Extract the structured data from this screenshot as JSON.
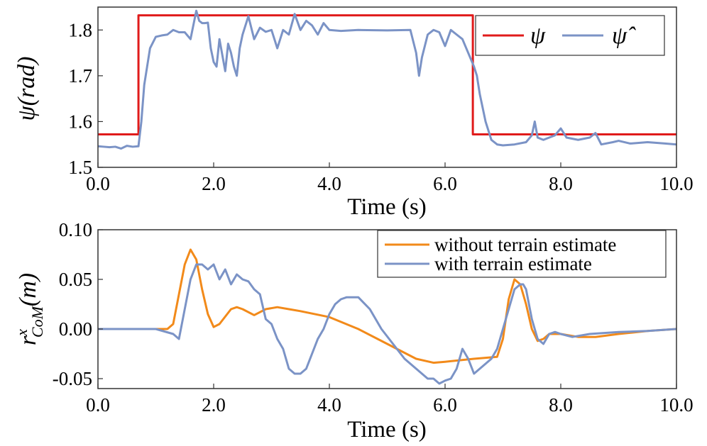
{
  "chart_data": [
    {
      "type": "line",
      "ylabel": "ψ(rad)",
      "xlabel": "Time (s)",
      "xlim": [
        0,
        10
      ],
      "ylim": [
        1.5,
        1.85
      ],
      "xticks": [
        0,
        2,
        4,
        6,
        8,
        10
      ],
      "xtick_labels": [
        "0.0",
        "2.0",
        "4.0",
        "6.0",
        "8.0",
        "10.0"
      ],
      "yticks": [
        1.5,
        1.6,
        1.7,
        1.8
      ],
      "ytick_labels": [
        "1.5",
        "1.6",
        "1.7",
        "1.8"
      ],
      "legend_position": "top-right",
      "series": [
        {
          "name": "ψ",
          "color": "#e01b1b",
          "x": [
            0.0,
            0.7,
            0.7,
            6.48,
            6.48,
            10.0
          ],
          "y": [
            1.572,
            1.572,
            1.832,
            1.832,
            1.572,
            1.572
          ]
        },
        {
          "name": "ψ̂",
          "color": "#7b93c6",
          "x": [
            0.0,
            0.1,
            0.2,
            0.3,
            0.4,
            0.5,
            0.6,
            0.7,
            0.75,
            0.8,
            0.85,
            0.9,
            1.0,
            1.1,
            1.2,
            1.3,
            1.4,
            1.5,
            1.6,
            1.7,
            1.75,
            1.8,
            1.85,
            1.9,
            1.95,
            2.0,
            2.05,
            2.1,
            2.2,
            2.25,
            2.3,
            2.35,
            2.4,
            2.45,
            2.5,
            2.6,
            2.7,
            2.8,
            2.9,
            3.0,
            3.1,
            3.2,
            3.3,
            3.4,
            3.5,
            3.6,
            3.7,
            3.8,
            3.9,
            4.0,
            4.2,
            4.5,
            5.0,
            5.4,
            5.5,
            5.55,
            5.6,
            5.7,
            5.8,
            5.9,
            6.0,
            6.1,
            6.2,
            6.3,
            6.4,
            6.5,
            6.55,
            6.6,
            6.7,
            6.8,
            6.9,
            7.0,
            7.2,
            7.4,
            7.5,
            7.55,
            7.6,
            7.7,
            7.8,
            7.9,
            8.0,
            8.1,
            8.3,
            8.5,
            8.6,
            8.7,
            8.9,
            9.0,
            9.2,
            9.5,
            9.8,
            10.0
          ],
          "y": [
            1.546,
            1.545,
            1.544,
            1.545,
            1.541,
            1.547,
            1.545,
            1.546,
            1.6,
            1.68,
            1.72,
            1.76,
            1.785,
            1.788,
            1.79,
            1.8,
            1.795,
            1.795,
            1.78,
            1.842,
            1.82,
            1.815,
            1.815,
            1.816,
            1.76,
            1.73,
            1.72,
            1.78,
            1.71,
            1.77,
            1.75,
            1.72,
            1.7,
            1.76,
            1.79,
            1.83,
            1.78,
            1.805,
            1.796,
            1.8,
            1.76,
            1.8,
            1.79,
            1.835,
            1.8,
            1.82,
            1.81,
            1.79,
            1.815,
            1.8,
            1.798,
            1.8,
            1.799,
            1.8,
            1.75,
            1.7,
            1.74,
            1.79,
            1.8,
            1.795,
            1.765,
            1.8,
            1.79,
            1.78,
            1.75,
            1.72,
            1.7,
            1.66,
            1.6,
            1.56,
            1.55,
            1.548,
            1.55,
            1.555,
            1.57,
            1.6,
            1.565,
            1.56,
            1.565,
            1.57,
            1.585,
            1.565,
            1.56,
            1.565,
            1.575,
            1.55,
            1.555,
            1.558,
            1.552,
            1.555,
            1.552,
            1.55
          ]
        }
      ]
    },
    {
      "type": "line",
      "ylabel_base": "r",
      "ylabel_sup": "x",
      "ylabel_sub": "CoM",
      "ylabel_rest": "(m)",
      "xlabel": "Time (s)",
      "xlim": [
        0,
        10
      ],
      "ylim": [
        -0.06,
        0.1
      ],
      "xticks": [
        0,
        2,
        4,
        6,
        8,
        10
      ],
      "xtick_labels": [
        "0.0",
        "2.0",
        "4.0",
        "6.0",
        "8.0",
        "10.0"
      ],
      "yticks": [
        -0.05,
        0.0,
        0.05,
        0.1
      ],
      "ytick_labels": [
        "-0.05",
        "0.00",
        "0.05",
        "0.10"
      ],
      "legend_position": "top-right",
      "series": [
        {
          "name": "without terrain estimate",
          "color": "#f28a1a",
          "x": [
            0.0,
            0.5,
            1.0,
            1.2,
            1.3,
            1.4,
            1.5,
            1.6,
            1.7,
            1.8,
            1.9,
            2.0,
            2.1,
            2.3,
            2.4,
            2.5,
            2.7,
            2.9,
            3.1,
            3.3,
            3.5,
            4.0,
            4.5,
            5.0,
            5.5,
            5.8,
            6.0,
            6.5,
            6.9,
            7.0,
            7.1,
            7.2,
            7.3,
            7.4,
            7.5,
            7.6,
            7.7,
            7.8,
            8.0,
            8.3,
            8.6,
            9.0,
            9.5,
            10.0
          ],
          "y": [
            0.0,
            0.0,
            0.0,
            0.0,
            0.005,
            0.035,
            0.065,
            0.08,
            0.07,
            0.04,
            0.015,
            0.002,
            0.005,
            0.02,
            0.022,
            0.02,
            0.014,
            0.02,
            0.022,
            0.02,
            0.018,
            0.012,
            0.0,
            -0.015,
            -0.03,
            -0.034,
            -0.033,
            -0.03,
            -0.028,
            -0.01,
            0.03,
            0.05,
            0.045,
            0.025,
            0.0,
            -0.012,
            -0.01,
            -0.005,
            -0.005,
            -0.008,
            -0.008,
            -0.005,
            -0.002,
            0.0
          ]
        },
        {
          "name": "with terrain estimate",
          "color": "#7b93c6",
          "x": [
            0.0,
            0.5,
            1.0,
            1.3,
            1.4,
            1.5,
            1.6,
            1.7,
            1.8,
            1.9,
            2.0,
            2.1,
            2.2,
            2.3,
            2.4,
            2.5,
            2.6,
            2.7,
            2.8,
            2.9,
            3.0,
            3.1,
            3.2,
            3.3,
            3.4,
            3.5,
            3.6,
            3.7,
            3.8,
            3.9,
            4.0,
            4.1,
            4.2,
            4.3,
            4.5,
            4.7,
            4.9,
            5.1,
            5.3,
            5.5,
            5.6,
            5.7,
            5.8,
            5.9,
            6.0,
            6.1,
            6.2,
            6.3,
            6.4,
            6.5,
            6.6,
            6.7,
            6.8,
            6.9,
            7.0,
            7.1,
            7.2,
            7.3,
            7.35,
            7.4,
            7.5,
            7.6,
            7.7,
            7.8,
            7.9,
            8.0,
            8.2,
            8.5,
            9.0,
            9.5,
            10.0
          ],
          "y": [
            0.0,
            0.0,
            0.0,
            -0.005,
            -0.01,
            0.02,
            0.05,
            0.065,
            0.065,
            0.06,
            0.065,
            0.05,
            0.06,
            0.045,
            0.055,
            0.05,
            0.048,
            0.04,
            0.035,
            0.01,
            0.005,
            -0.01,
            -0.02,
            -0.04,
            -0.045,
            -0.045,
            -0.04,
            -0.025,
            -0.01,
            0.0,
            0.015,
            0.025,
            0.03,
            0.032,
            0.032,
            0.02,
            0.0,
            -0.015,
            -0.03,
            -0.04,
            -0.045,
            -0.05,
            -0.05,
            -0.055,
            -0.052,
            -0.05,
            -0.04,
            -0.02,
            -0.03,
            -0.045,
            -0.04,
            -0.035,
            -0.03,
            -0.02,
            0.0,
            0.02,
            0.04,
            0.045,
            0.045,
            0.04,
            0.01,
            -0.01,
            -0.015,
            -0.005,
            -0.003,
            -0.005,
            -0.008,
            -0.005,
            -0.003,
            -0.002,
            0.0
          ]
        }
      ]
    }
  ]
}
